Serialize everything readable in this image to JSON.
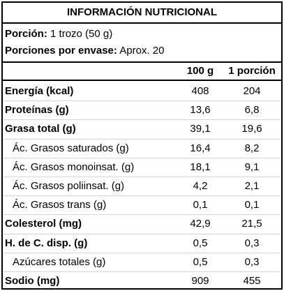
{
  "title": "INFORMACIÓN NUTRICIONAL",
  "serving": {
    "portion_label": "Porción:",
    "portion_value": "1 trozo (50 g)",
    "per_container_label": "Porciones por envase:",
    "per_container_value": "Aprox. 20"
  },
  "columns": {
    "per100": "100 g",
    "perServing": "1 porción"
  },
  "rows": [
    {
      "name": "Energía (kcal)",
      "per100": "408",
      "perServing": "204"
    },
    {
      "name": "Proteínas (g)",
      "per100": "13,6",
      "perServing": "6,8"
    },
    {
      "name": "Grasa total (g)",
      "per100": "39,1",
      "perServing": "19,6"
    },
    {
      "name": "Ác. Grasos saturados (g)",
      "per100": "16,4",
      "perServing": "8,2"
    },
    {
      "name": "Ác. Grasos monoinsat. (g)",
      "per100": "18,1",
      "perServing": "9,1"
    },
    {
      "name": "Ác. Grasos poliinsat. (g)",
      "per100": "4,2",
      "perServing": "2,1"
    },
    {
      "name": "Ác. Grasos trans (g)",
      "per100": "0,1",
      "perServing": "0,1"
    },
    {
      "name": "Colesterol (mg)",
      "per100": "42,9",
      "perServing": "21,5"
    },
    {
      "name": "H. de C. disp. (g)",
      "per100": "0,5",
      "perServing": "0,3"
    },
    {
      "name": "Azúcares totales (g)",
      "per100": "0,5",
      "perServing": "0,3"
    },
    {
      "name": "Sodio (mg)",
      "per100": "909",
      "perServing": "455"
    }
  ]
}
